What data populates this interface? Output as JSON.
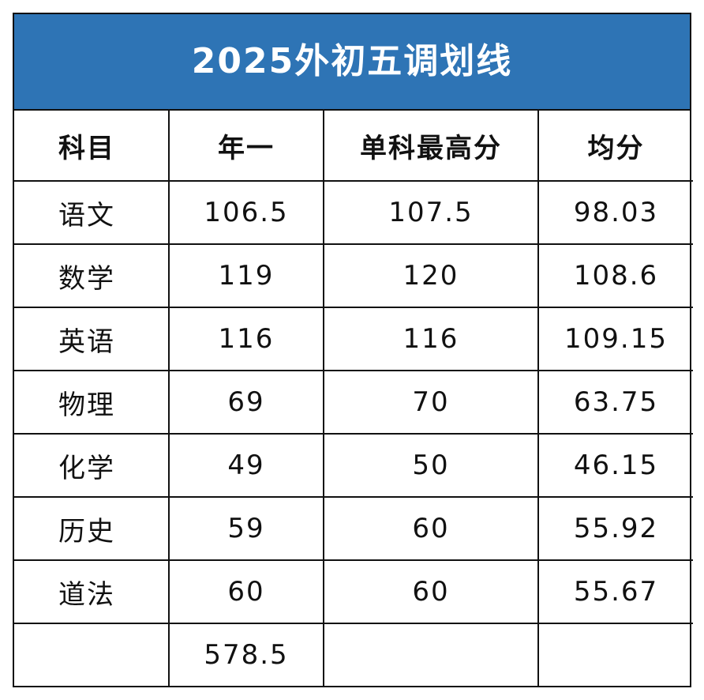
{
  "title": "2025外初五调划线",
  "header": {
    "subject": "科目",
    "first_tier": "年一",
    "max_single": "单科最高分",
    "average": "均分"
  },
  "rows": [
    {
      "subject": "语文",
      "first_tier": "106.5",
      "max_single": "107.5",
      "average": "98.03"
    },
    {
      "subject": "数学",
      "first_tier": "119",
      "max_single": "120",
      "average": "108.6"
    },
    {
      "subject": "英语",
      "first_tier": "116",
      "max_single": "116",
      "average": "109.15"
    },
    {
      "subject": "物理",
      "first_tier": "69",
      "max_single": "70",
      "average": "63.75"
    },
    {
      "subject": "化学",
      "first_tier": "49",
      "max_single": "50",
      "average": "46.15"
    },
    {
      "subject": "历史",
      "first_tier": "59",
      "max_single": "60",
      "average": "55.92"
    },
    {
      "subject": "道法",
      "first_tier": "60",
      "max_single": "60",
      "average": "55.67"
    }
  ],
  "total": {
    "subject": "",
    "first_tier": "578.5",
    "max_single": "",
    "average": ""
  },
  "colors": {
    "title_background": "#2e74b5",
    "title_text": "#ffffff",
    "border": "#111111"
  }
}
